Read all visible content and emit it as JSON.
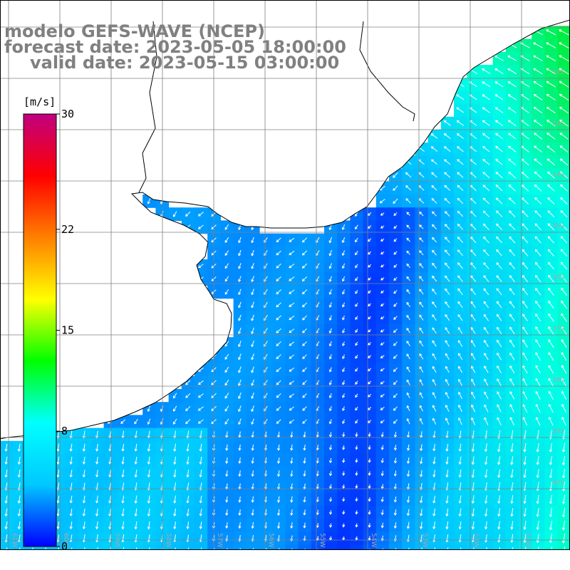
{
  "header": {
    "model_line": "modelo GEFS-WAVE (NCEP)",
    "forecast_line": "forecast date: 2023-05-05 18:00:00",
    "valid_line": "valid date: 2023-05-15 03:00:00"
  },
  "colorbar": {
    "unit": "[m/s]",
    "ticks": [
      "30",
      "22",
      "15",
      "8",
      "0"
    ],
    "tick_values": [
      30,
      22,
      15,
      8,
      0
    ],
    "range": [
      0,
      30
    ],
    "stops": [
      "#0000ff",
      "#00c8ff",
      "#00ffff",
      "#00ff00",
      "#ffff00",
      "#ff8000",
      "#ff0000",
      "#c00080"
    ]
  },
  "axes": {
    "lon_labels": [
      "61W",
      "60W",
      "59W",
      "58W",
      "57W",
      "56W",
      "55W",
      "54W",
      "53W",
      "52W",
      "51W"
    ],
    "lat_labels": [
      "32S",
      "33S",
      "34S",
      "35S",
      "36S",
      "37S",
      "38S",
      "39S",
      "40S"
    ],
    "grid": true
  },
  "colors": {
    "land": "#ffffff",
    "coast": "#000000",
    "grid": "#808080",
    "arrows": "#ffffff",
    "title": "#808080"
  }
}
